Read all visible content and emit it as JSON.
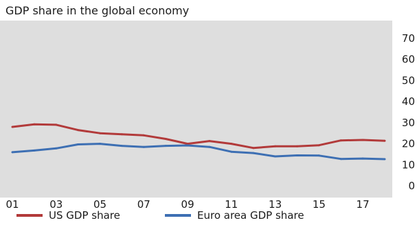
{
  "chart_data": {
    "type": "line",
    "title": "GDP share in the global economy",
    "x": [
      "01",
      "02",
      "03",
      "04",
      "05",
      "06",
      "07",
      "08",
      "09",
      "10",
      "11",
      "12",
      "13",
      "14",
      "15",
      "16",
      "17",
      "18"
    ],
    "x_ticks": [
      "01",
      "03",
      "05",
      "07",
      "09",
      "11",
      "13",
      "15",
      "17"
    ],
    "y_ticks": [
      0,
      10,
      20,
      30,
      40,
      50,
      60,
      70
    ],
    "ylim": [
      0,
      75
    ],
    "grid": false,
    "legend_position": "bottom",
    "series": [
      {
        "name": "US GDP share",
        "color": "#b23a3a",
        "values": [
          28.0,
          29.2,
          29.0,
          26.5,
          25.0,
          24.5,
          24.0,
          22.3,
          20.0,
          21.3,
          20.0,
          18.0,
          18.8,
          18.8,
          19.3,
          21.6,
          21.8,
          21.4
        ]
      },
      {
        "name": "Euro area GDP share",
        "color": "#3d6fb3",
        "values": [
          16.0,
          16.8,
          17.8,
          19.7,
          20.0,
          19.0,
          18.5,
          19.0,
          19.2,
          18.5,
          16.2,
          15.6,
          14.0,
          14.5,
          14.4,
          12.8,
          13.0,
          12.7
        ]
      }
    ]
  },
  "colors": {
    "panel": "#dedede",
    "axis_text": "#1a1a1a"
  }
}
